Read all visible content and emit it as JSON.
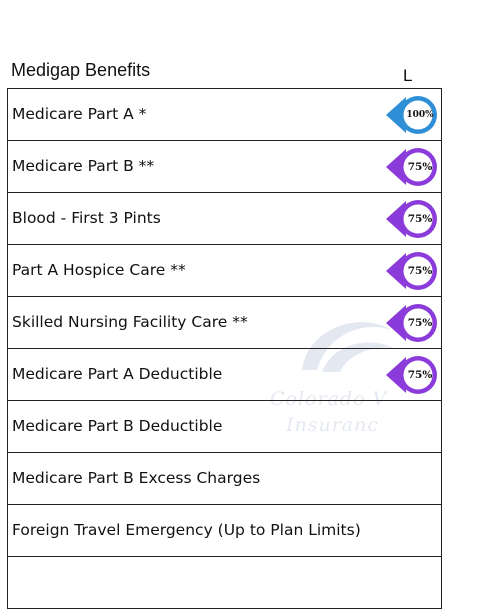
{
  "header": {
    "title": "Medigap Benefits",
    "plan_column": "L"
  },
  "watermark": {
    "line1": "Colorado V",
    "line2": "Insuranc"
  },
  "rows": [
    {
      "label": "Medicare Part A *",
      "coverage": "100%",
      "color": "#2f8fd6"
    },
    {
      "label": "Medicare Part B **",
      "coverage": "75%",
      "color": "#8b3bd9"
    },
    {
      "label": "Blood - First 3 Pints",
      "coverage": "75%",
      "color": "#8b3bd9"
    },
    {
      "label": "Part A Hospice Care **",
      "coverage": "75%",
      "color": "#8b3bd9"
    },
    {
      "label": "Skilled Nursing Facility Care **",
      "coverage": "75%",
      "color": "#8b3bd9"
    },
    {
      "label": "Medicare Part A Deductible",
      "coverage": "75%",
      "color": "#8b3bd9"
    },
    {
      "label": "Medicare Part B Deductible",
      "coverage": "",
      "color": ""
    },
    {
      "label": "Medicare Part B Excess Charges",
      "coverage": "",
      "color": ""
    },
    {
      "label": "Foreign Travel Emergency (Up to Plan Limits)",
      "coverage": "",
      "color": ""
    },
    {
      "label": "",
      "coverage": "",
      "color": ""
    }
  ]
}
